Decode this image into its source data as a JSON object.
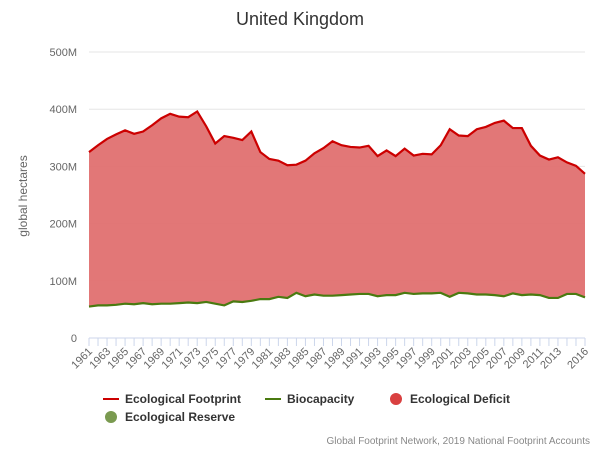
{
  "chart_data": {
    "type": "area",
    "title": "United Kingdom",
    "xlabel": "",
    "ylabel": "global hectares",
    "ylim": [
      0,
      500
    ],
    "yticks": [
      "0",
      "100M",
      "200M",
      "300M",
      "400M",
      "500M"
    ],
    "x": [
      1961,
      1962,
      1963,
      1964,
      1965,
      1966,
      1967,
      1968,
      1969,
      1970,
      1971,
      1972,
      1973,
      1974,
      1975,
      1976,
      1977,
      1978,
      1979,
      1980,
      1981,
      1982,
      1983,
      1984,
      1985,
      1986,
      1987,
      1988,
      1989,
      1990,
      1991,
      1992,
      1993,
      1994,
      1995,
      1996,
      1997,
      1998,
      1999,
      2000,
      2001,
      2002,
      2003,
      2004,
      2005,
      2006,
      2007,
      2008,
      2009,
      2010,
      2011,
      2012,
      2013,
      2014,
      2015,
      2016
    ],
    "series": [
      {
        "name": "Ecological Footprint",
        "color": "#cc0000",
        "values": [
          325,
          337,
          348,
          356,
          363,
          357,
          361,
          372,
          384,
          392,
          387,
          386,
          396,
          370,
          340,
          353,
          350,
          346,
          361,
          325,
          313,
          310,
          302,
          303,
          310,
          323,
          332,
          344,
          337,
          334,
          333,
          336,
          318,
          328,
          318,
          331,
          319,
          322,
          321,
          337,
          365,
          354,
          353,
          365,
          369,
          376,
          380,
          367,
          367,
          336,
          319,
          312,
          316,
          307,
          301,
          287
        ]
      },
      {
        "name": "Biocapacity",
        "color": "#4a7a10",
        "values": [
          55,
          57,
          57,
          58,
          60,
          59,
          61,
          59,
          60,
          60,
          61,
          62,
          61,
          63,
          60,
          57,
          64,
          63,
          65,
          68,
          68,
          72,
          70,
          79,
          73,
          76,
          74,
          74,
          75,
          76,
          77,
          77,
          73,
          75,
          75,
          79,
          77,
          78,
          78,
          79,
          72,
          79,
          78,
          76,
          76,
          75,
          73,
          78,
          75,
          76,
          75,
          70,
          70,
          77,
          77,
          71
        ]
      }
    ],
    "legend": [
      {
        "label": "Ecological Footprint",
        "type": "line",
        "color": "#cc0000"
      },
      {
        "label": "Biocapacity",
        "type": "line",
        "color": "#4a7a10"
      },
      {
        "label": "Ecological Deficit",
        "type": "dot",
        "color": "#d94040"
      },
      {
        "label": "Ecological Reserve",
        "type": "dot",
        "color": "#7a9a50"
      }
    ],
    "deficit_fill": "#e07070",
    "legend_placement": "bottom-left",
    "source": "Global Footprint Network, 2019 National Footprint Accounts"
  }
}
